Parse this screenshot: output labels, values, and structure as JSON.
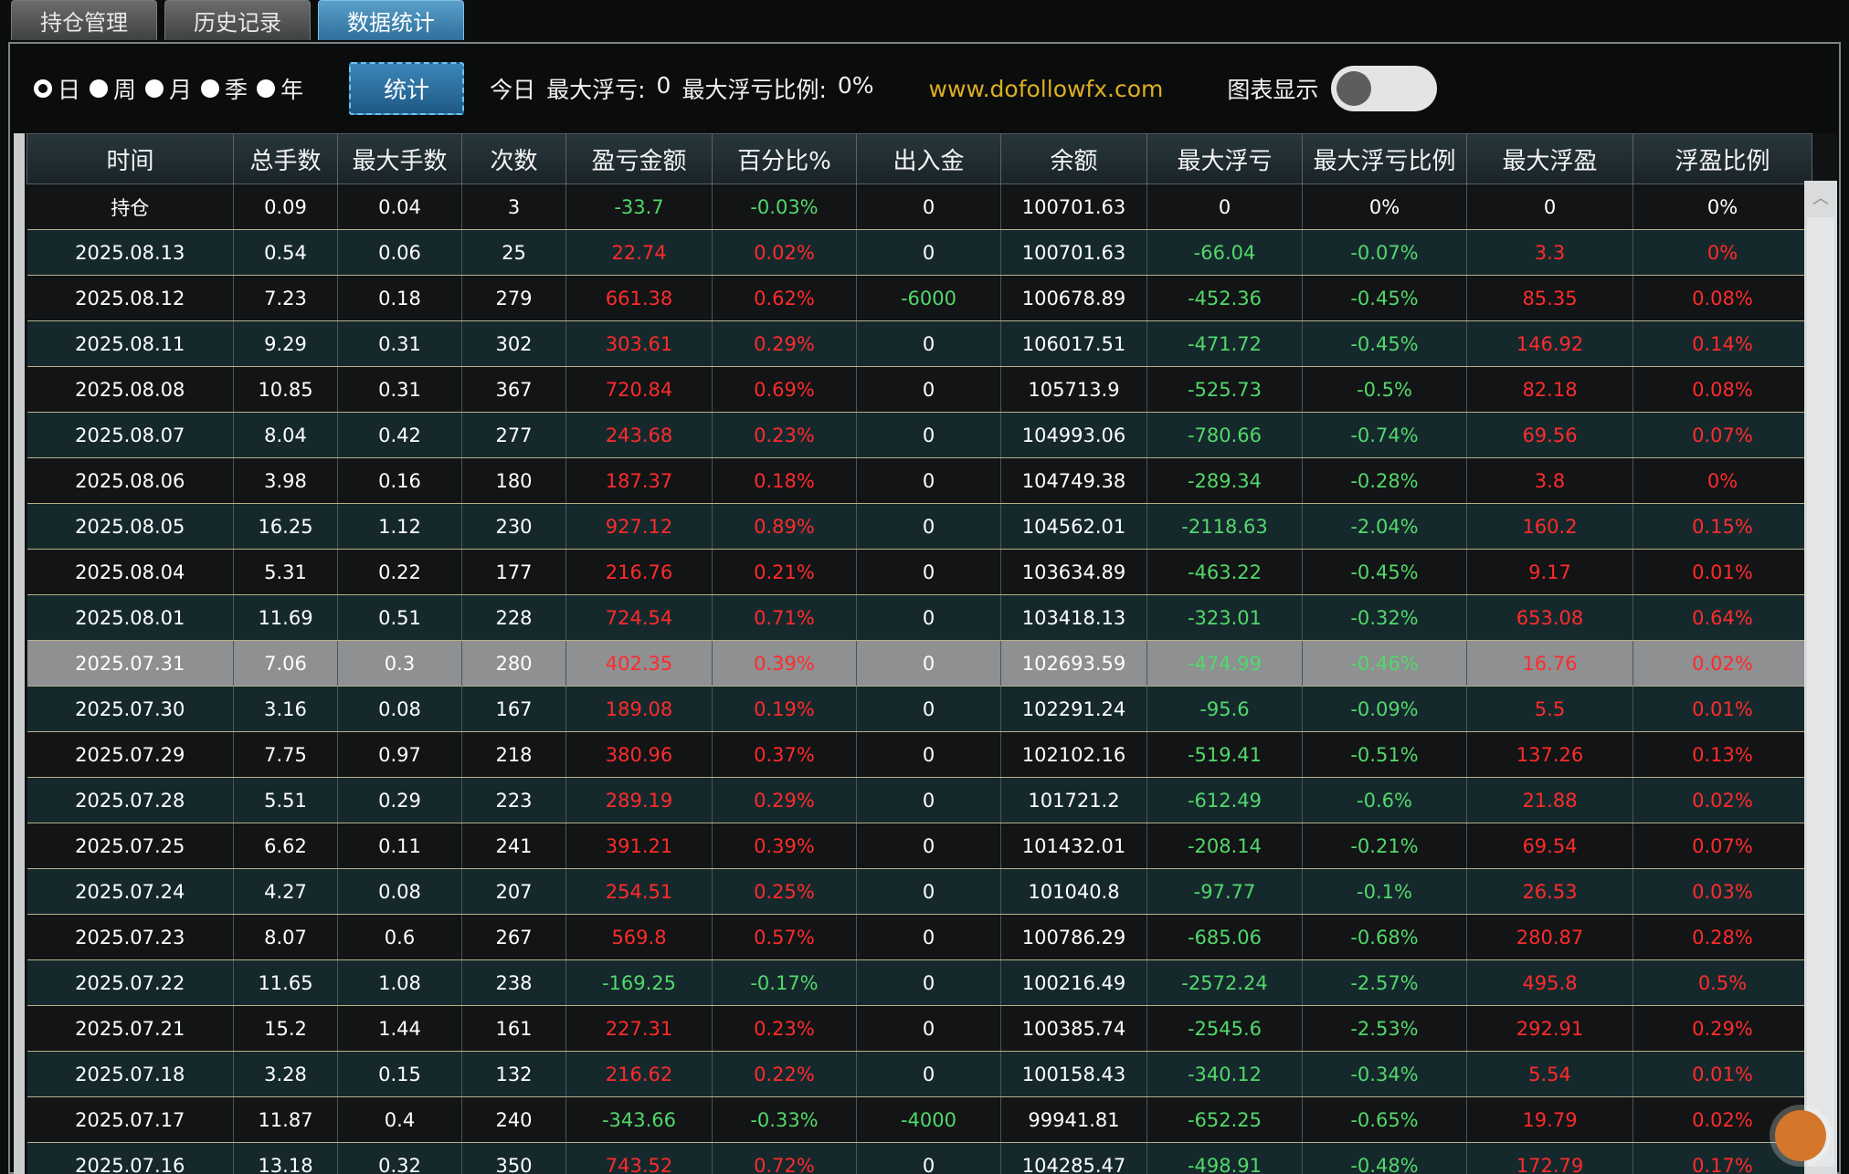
{
  "tabs": [
    "持仓管理",
    "历史记录",
    "数据统计"
  ],
  "toolbar": {
    "periods": [
      "日",
      "周",
      "月",
      "季",
      "年"
    ],
    "stat_button": "统计",
    "today_prefix": "今日",
    "max_float_loss_label": "最大浮亏:",
    "max_float_loss_value": "0",
    "max_float_loss_ratio_label": "最大浮亏比例:",
    "max_float_loss_ratio_value": "0%",
    "site": "www.dofollowfx.com",
    "chart_toggle_label": "图表显示",
    "chart_toggle_on": false
  },
  "table": {
    "headers": [
      "时间",
      "总手数",
      "最大手数",
      "次数",
      "盈亏金额",
      "百分比%",
      "出入金",
      "余额",
      "最大浮亏",
      "最大浮亏比例",
      "最大浮盈",
      "浮盈比例"
    ],
    "selected_row": 10,
    "rows": [
      [
        "持仓",
        "0.09",
        "0.04",
        "3",
        "-33.7",
        "-0.03%",
        "0",
        "100701.63",
        "0",
        "0%",
        "0",
        "0%"
      ],
      [
        "2025.08.13",
        "0.54",
        "0.06",
        "25",
        "22.74",
        "0.02%",
        "0",
        "100701.63",
        "-66.04",
        "-0.07%",
        "3.3",
        "0%"
      ],
      [
        "2025.08.12",
        "7.23",
        "0.18",
        "279",
        "661.38",
        "0.62%",
        "-6000",
        "100678.89",
        "-452.36",
        "-0.45%",
        "85.35",
        "0.08%"
      ],
      [
        "2025.08.11",
        "9.29",
        "0.31",
        "302",
        "303.61",
        "0.29%",
        "0",
        "106017.51",
        "-471.72",
        "-0.45%",
        "146.92",
        "0.14%"
      ],
      [
        "2025.08.08",
        "10.85",
        "0.31",
        "367",
        "720.84",
        "0.69%",
        "0",
        "105713.9",
        "-525.73",
        "-0.5%",
        "82.18",
        "0.08%"
      ],
      [
        "2025.08.07",
        "8.04",
        "0.42",
        "277",
        "243.68",
        "0.23%",
        "0",
        "104993.06",
        "-780.66",
        "-0.74%",
        "69.56",
        "0.07%"
      ],
      [
        "2025.08.06",
        "3.98",
        "0.16",
        "180",
        "187.37",
        "0.18%",
        "0",
        "104749.38",
        "-289.34",
        "-0.28%",
        "3.8",
        "0%"
      ],
      [
        "2025.08.05",
        "16.25",
        "1.12",
        "230",
        "927.12",
        "0.89%",
        "0",
        "104562.01",
        "-2118.63",
        "-2.04%",
        "160.2",
        "0.15%"
      ],
      [
        "2025.08.04",
        "5.31",
        "0.22",
        "177",
        "216.76",
        "0.21%",
        "0",
        "103634.89",
        "-463.22",
        "-0.45%",
        "9.17",
        "0.01%"
      ],
      [
        "2025.08.01",
        "11.69",
        "0.51",
        "228",
        "724.54",
        "0.71%",
        "0",
        "103418.13",
        "-323.01",
        "-0.32%",
        "653.08",
        "0.64%"
      ],
      [
        "2025.07.31",
        "7.06",
        "0.3",
        "280",
        "402.35",
        "0.39%",
        "0",
        "102693.59",
        "-474.99",
        "-0.46%",
        "16.76",
        "0.02%"
      ],
      [
        "2025.07.30",
        "3.16",
        "0.08",
        "167",
        "189.08",
        "0.19%",
        "0",
        "102291.24",
        "-95.6",
        "-0.09%",
        "5.5",
        "0.01%"
      ],
      [
        "2025.07.29",
        "7.75",
        "0.97",
        "218",
        "380.96",
        "0.37%",
        "0",
        "102102.16",
        "-519.41",
        "-0.51%",
        "137.26",
        "0.13%"
      ],
      [
        "2025.07.28",
        "5.51",
        "0.29",
        "223",
        "289.19",
        "0.29%",
        "0",
        "101721.2",
        "-612.49",
        "-0.6%",
        "21.88",
        "0.02%"
      ],
      [
        "2025.07.25",
        "6.62",
        "0.11",
        "241",
        "391.21",
        "0.39%",
        "0",
        "101432.01",
        "-208.14",
        "-0.21%",
        "69.54",
        "0.07%"
      ],
      [
        "2025.07.24",
        "4.27",
        "0.08",
        "207",
        "254.51",
        "0.25%",
        "0",
        "101040.8",
        "-97.77",
        "-0.1%",
        "26.53",
        "0.03%"
      ],
      [
        "2025.07.23",
        "8.07",
        "0.6",
        "267",
        "569.8",
        "0.57%",
        "0",
        "100786.29",
        "-685.06",
        "-0.68%",
        "280.87",
        "0.28%"
      ],
      [
        "2025.07.22",
        "11.65",
        "1.08",
        "238",
        "-169.25",
        "-0.17%",
        "0",
        "100216.49",
        "-2572.24",
        "-2.57%",
        "495.8",
        "0.5%"
      ],
      [
        "2025.07.21",
        "15.2",
        "1.44",
        "161",
        "227.31",
        "0.23%",
        "0",
        "100385.74",
        "-2545.6",
        "-2.53%",
        "292.91",
        "0.29%"
      ],
      [
        "2025.07.18",
        "3.28",
        "0.15",
        "132",
        "216.62",
        "0.22%",
        "0",
        "100158.43",
        "-340.12",
        "-0.34%",
        "5.54",
        "0.01%"
      ],
      [
        "2025.07.17",
        "11.87",
        "0.4",
        "240",
        "-343.66",
        "-0.33%",
        "-4000",
        "99941.81",
        "-652.25",
        "-0.65%",
        "19.79",
        "0.02%"
      ],
      [
        "2025.07.16",
        "13.18",
        "0.32",
        "350",
        "743.52",
        "0.72%",
        "0",
        "104285.47",
        "-498.91",
        "-0.48%",
        "172.79",
        "0.17%"
      ]
    ]
  },
  "colors": {
    "profit": "#ff2b2b",
    "loss": "#52d86a",
    "link": "#dcae22",
    "active_tab": "#2f6f9c"
  }
}
